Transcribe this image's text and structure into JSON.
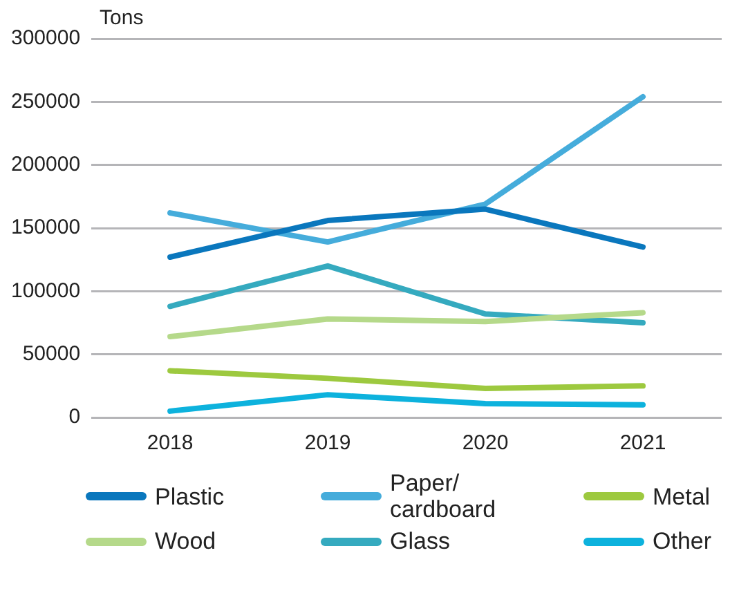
{
  "chart_data": {
    "type": "line",
    "ylabel": "Tons",
    "categories": [
      "2018",
      "2019",
      "2020",
      "2021"
    ],
    "ylim": [
      0,
      300000
    ],
    "yticks": [
      0,
      50000,
      100000,
      150000,
      200000,
      250000,
      300000
    ],
    "grid": "y",
    "legend": "bottom",
    "marker": "none",
    "line_style": "solid",
    "series": [
      {
        "name": "Plastic",
        "color": "#0a77bd",
        "values": [
          127000,
          156000,
          165000,
          135000
        ]
      },
      {
        "name": "Paper/\ncardboard",
        "color": "#45acdb",
        "values": [
          162000,
          139000,
          169000,
          254000
        ]
      },
      {
        "name": "Metal",
        "color": "#9dc93f",
        "values": [
          37000,
          31000,
          23000,
          25000
        ]
      },
      {
        "name": "Wood",
        "color": "#b5d98a",
        "values": [
          64000,
          78000,
          76000,
          83000
        ]
      },
      {
        "name": "Glass",
        "color": "#35aabf",
        "values": [
          88000,
          120000,
          82000,
          75000
        ]
      },
      {
        "name": "Other",
        "color": "#0db2dd",
        "values": [
          5000,
          18000,
          11000,
          10000
        ]
      }
    ]
  }
}
